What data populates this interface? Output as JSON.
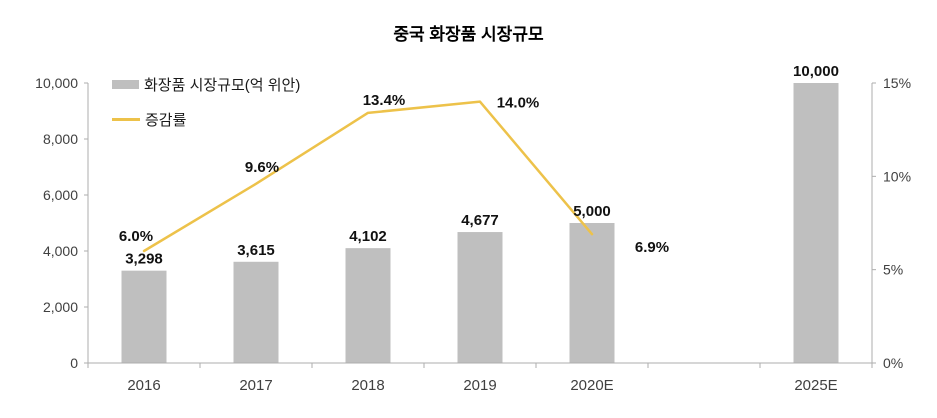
{
  "title": "중국 화장품 시장규모",
  "legend": {
    "bars": "화장품 시장규모(억 위안)",
    "line": "증감률"
  },
  "colors": {
    "bar": "#BFBFBF",
    "line": "#EDC24A",
    "axis": "#ADADAD",
    "tick_text": "#404040",
    "label_text": "#111111"
  },
  "chart_data": {
    "type": "bar+line combo",
    "title": "중국 화장품 시장규모",
    "categories": [
      "2016",
      "2017",
      "2018",
      "2019",
      "2020E",
      "2025E"
    ],
    "category_slots": [
      0,
      1,
      2,
      3,
      4,
      6
    ],
    "num_slots": 7,
    "series": [
      {
        "name": "화장품 시장규모(억 위안)",
        "type": "bar",
        "axis": "left",
        "values": [
          3298,
          3615,
          4102,
          4677,
          5000,
          10000
        ],
        "labels": [
          "3,298",
          "3,615",
          "4,102",
          "4,677",
          "5,000",
          "10,000"
        ]
      },
      {
        "name": "증감률",
        "type": "line",
        "axis": "right",
        "values": [
          6.0,
          9.6,
          13.4,
          14.0,
          6.9,
          null
        ],
        "labels": [
          "6.0%",
          "9.6%",
          "13.4%",
          "14.0%",
          "6.9%",
          null
        ]
      }
    ],
    "left_axis": {
      "min": 0,
      "max": 10000,
      "tick_values": [
        0,
        2000,
        4000,
        6000,
        8000,
        10000
      ],
      "tick_labels": [
        "0",
        "2,000",
        "4,000",
        "6,000",
        "8,000",
        "10,000"
      ]
    },
    "right_axis": {
      "min": 0,
      "max": 15,
      "tick_values": [
        0,
        5,
        10,
        15
      ],
      "tick_labels": [
        "0%",
        "5%",
        "10%",
        "15%"
      ]
    },
    "grid": false,
    "legend_position": "top-left"
  }
}
